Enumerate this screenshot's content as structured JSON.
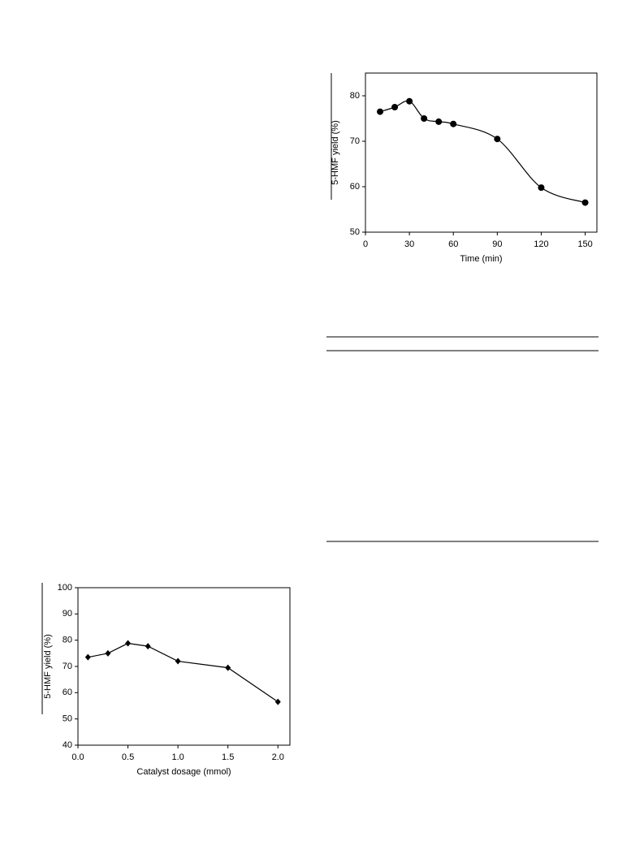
{
  "chart_data": [
    {
      "type": "line",
      "x_label": "Time (min)",
      "y_label": "5-HMF yield (%)",
      "x": [
        10,
        20,
        30,
        40,
        50,
        60,
        90,
        120,
        150
      ],
      "series": [
        {
          "color": "#000000",
          "values": [
            76.5,
            77.5,
            78.8,
            75,
            74.3,
            73.8,
            70.5,
            59.8,
            56.5
          ]
        }
      ],
      "xlim": [
        0,
        158
      ],
      "ylim": [
        50,
        85
      ],
      "xticks": [
        0,
        30,
        60,
        90,
        120,
        150
      ],
      "yticks": [
        50,
        60,
        70,
        80
      ],
      "marker": "circle",
      "smooth": true
    },
    {
      "type": "line",
      "x_label": "Catalyst dosage (mmol)",
      "y_label": "5-HMF yield (%)",
      "x": [
        0.1,
        0.3,
        0.5,
        0.7,
        1.0,
        1.5,
        2.0
      ],
      "series": [
        {
          "color": "#000000",
          "values": [
            73.5,
            75,
            78.8,
            77.7,
            72,
            69.5,
            56.5
          ]
        }
      ],
      "xlim": [
        0,
        2.12
      ],
      "ylim": [
        40,
        100
      ],
      "xticks": [
        {
          "value": 0,
          "label": "0.0"
        },
        0.5,
        {
          "value": 1,
          "label": "1.0"
        },
        1.5,
        {
          "value": 2,
          "label": "2.0"
        }
      ],
      "yticks": [
        40,
        50,
        60,
        70,
        80,
        90,
        100
      ],
      "marker": "diamond",
      "smooth": false
    }
  ]
}
